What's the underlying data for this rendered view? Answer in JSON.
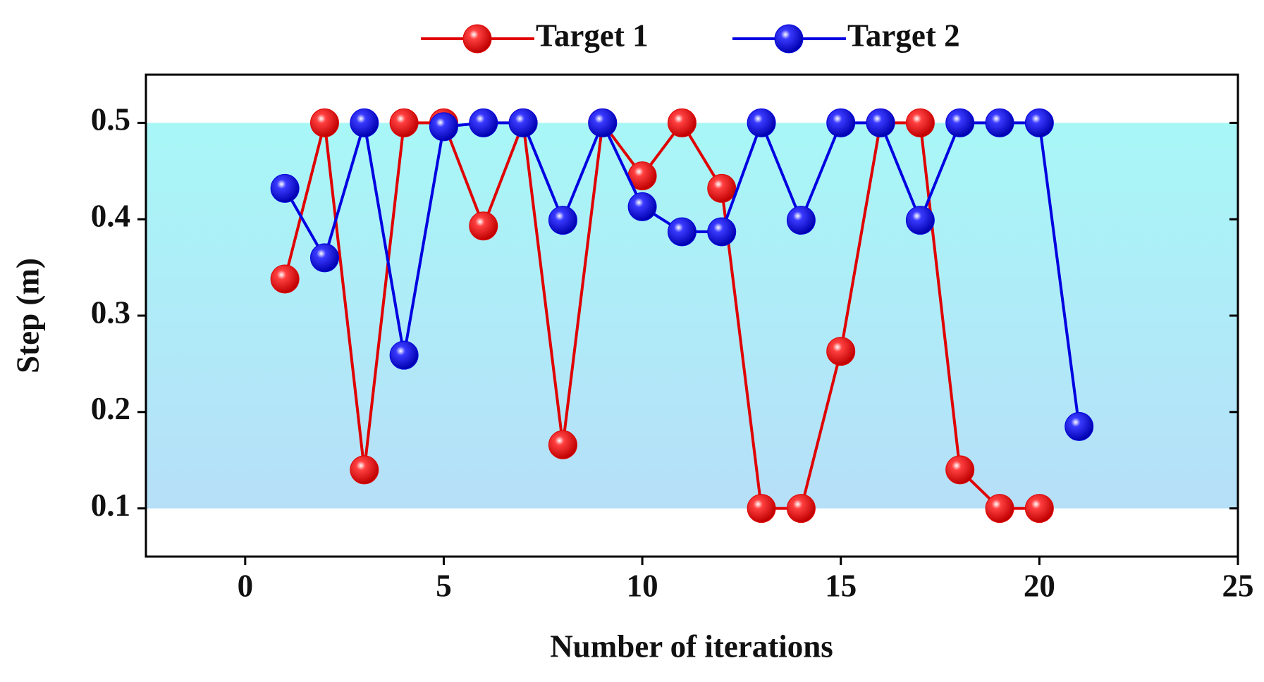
{
  "chart_data": {
    "type": "line",
    "x_label": "Number of iterations",
    "y_label": "Step (m)",
    "series": [
      {
        "name": "Target 1",
        "color": "#e00000",
        "x": [
          1,
          2,
          3,
          4,
          5,
          6,
          7,
          8,
          9,
          10,
          11,
          12,
          13,
          14,
          15,
          16,
          17,
          18,
          19,
          20
        ],
        "values": [
          0.338,
          0.5,
          0.14,
          0.5,
          0.5,
          0.393,
          0.5,
          0.166,
          0.5,
          0.445,
          0.5,
          0.432,
          0.1,
          0.1,
          0.263,
          0.5,
          0.5,
          0.14,
          0.1,
          0.1
        ]
      },
      {
        "name": "Target 2",
        "color": "#0000e0",
        "x": [
          1,
          2,
          3,
          4,
          5,
          6,
          7,
          8,
          9,
          10,
          11,
          12,
          13,
          14,
          15,
          16,
          17,
          18,
          19,
          20,
          21
        ],
        "values": [
          0.432,
          0.36,
          0.5,
          0.259,
          0.496,
          0.5,
          0.5,
          0.399,
          0.5,
          0.413,
          0.387,
          0.387,
          0.5,
          0.399,
          0.5,
          0.5,
          0.399,
          0.5,
          0.5,
          0.5,
          0.185
        ]
      }
    ],
    "xlim": [
      -2.5,
      25
    ],
    "xticks": [
      0,
      5,
      10,
      15,
      20,
      25
    ],
    "ylim": [
      0.05,
      0.55
    ],
    "yticks": [
      0.1,
      0.2,
      0.3,
      0.4,
      0.5
    ],
    "shaded_range": [
      0.1,
      0.5
    ],
    "legend": "top"
  }
}
